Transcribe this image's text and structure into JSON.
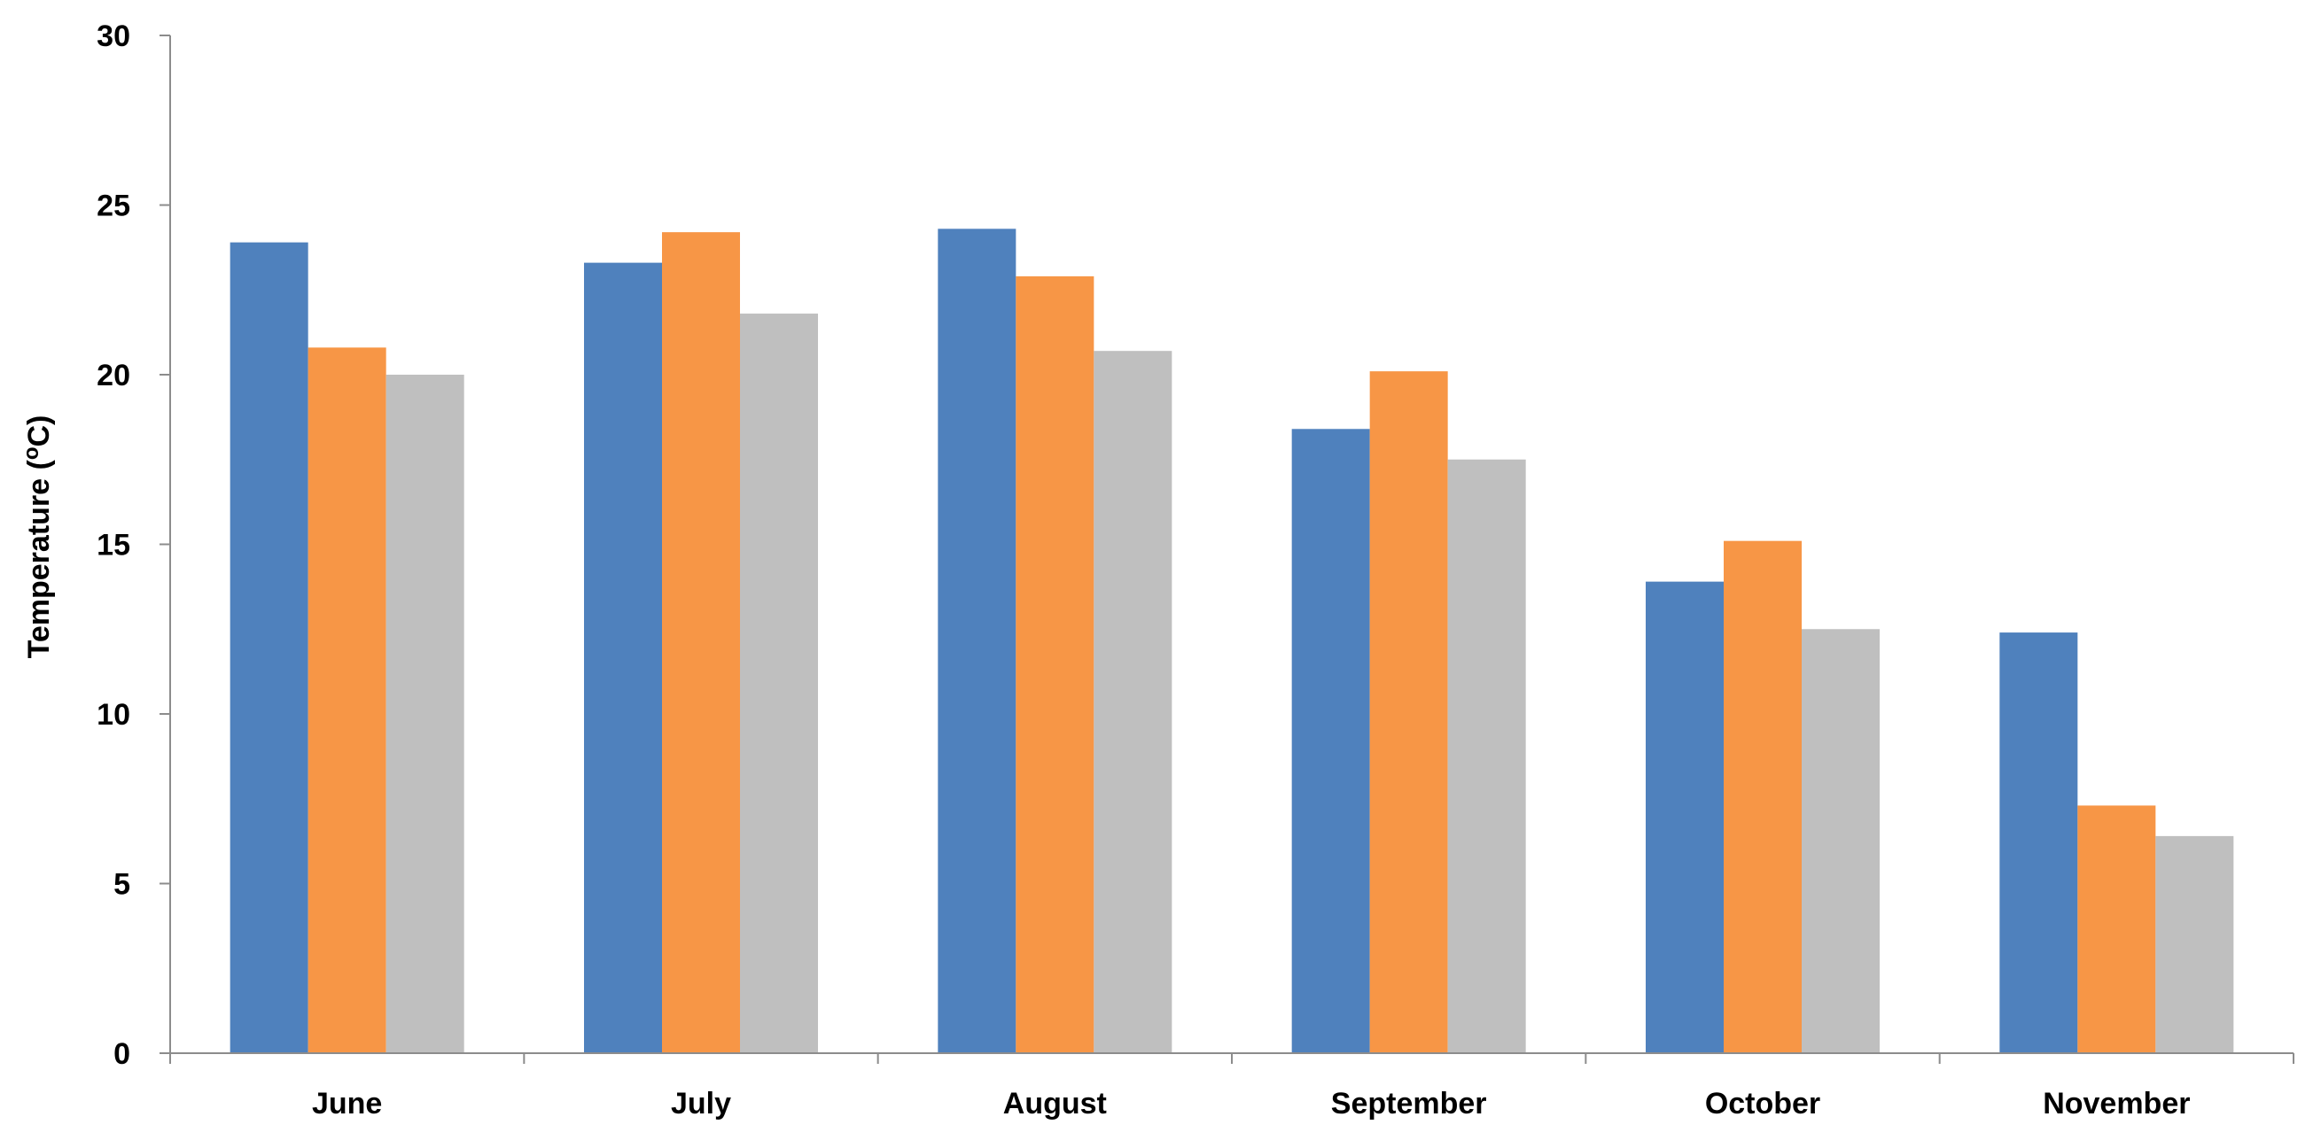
{
  "chart_data": {
    "type": "bar",
    "title": "",
    "xlabel": "",
    "ylabel": "Temperature (",
    "ylabel_superscript": "o",
    "ylabel_suffix": "C)",
    "ylim": [
      0,
      30
    ],
    "yticks": [
      0,
      5,
      10,
      15,
      20,
      25,
      30
    ],
    "ytick_labels": [
      "0",
      "5",
      "10",
      "15",
      "20",
      "25",
      "30"
    ],
    "grid": false,
    "legend": "none",
    "categories": [
      "June",
      "July",
      "August",
      "September",
      "October",
      "November"
    ],
    "series": [
      {
        "color": "#4f81bd",
        "values": [
          23.9,
          23.3,
          24.3,
          18.4,
          13.9,
          12.4
        ]
      },
      {
        "color": "#f79646",
        "values": [
          20.8,
          24.2,
          22.9,
          20.1,
          15.1,
          7.3
        ]
      },
      {
        "color": "#bfbfbf",
        "values": [
          20.0,
          21.8,
          20.7,
          17.5,
          12.5,
          6.4
        ]
      }
    ]
  }
}
